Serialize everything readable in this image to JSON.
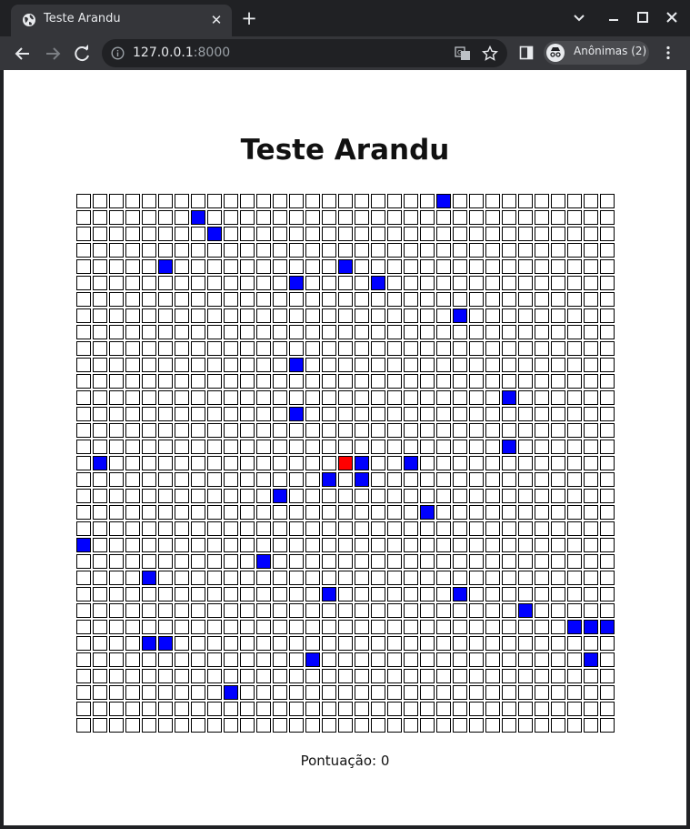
{
  "browser": {
    "tab_title": "Teste Arandu",
    "url_host": "127.0.0.1",
    "url_port": ":8000",
    "profile_label": "Anônimas (2)"
  },
  "page": {
    "title": "Teste Arandu",
    "score_label": "Pontuação: 0"
  },
  "board": {
    "columns": 33,
    "rows": 33,
    "colors": {
      "empty": "#ffffff",
      "wall": "#0000ff",
      "player": "#ff0000"
    },
    "player": [
      16,
      16
    ],
    "walls": [
      [
        0,
        22
      ],
      [
        1,
        7
      ],
      [
        2,
        8
      ],
      [
        4,
        5
      ],
      [
        4,
        16
      ],
      [
        5,
        13
      ],
      [
        5,
        18
      ],
      [
        7,
        23
      ],
      [
        10,
        13
      ],
      [
        12,
        26
      ],
      [
        13,
        13
      ],
      [
        15,
        26
      ],
      [
        16,
        1
      ],
      [
        16,
        17
      ],
      [
        16,
        20
      ],
      [
        17,
        15
      ],
      [
        17,
        17
      ],
      [
        18,
        12
      ],
      [
        19,
        21
      ],
      [
        21,
        0
      ],
      [
        22,
        11
      ],
      [
        23,
        4
      ],
      [
        24,
        15
      ],
      [
        24,
        23
      ],
      [
        25,
        27
      ],
      [
        26,
        30
      ],
      [
        26,
        31
      ],
      [
        26,
        32
      ],
      [
        27,
        4
      ],
      [
        27,
        5
      ],
      [
        28,
        14
      ],
      [
        28,
        31
      ],
      [
        30,
        9
      ]
    ]
  }
}
